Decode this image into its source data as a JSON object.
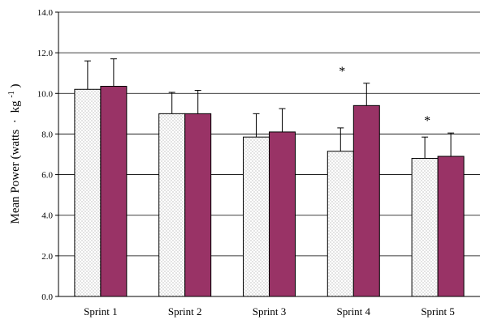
{
  "chart_data": {
    "type": "bar",
    "categories": [
      "Sprint 1",
      "Sprint 2",
      "Sprint 3",
      "Sprint 4",
      "Sprint 5"
    ],
    "series": [
      {
        "values": [
          10.2,
          9.0,
          7.85,
          7.15,
          6.8
        ],
        "errors": [
          1.4,
          1.05,
          1.15,
          1.15,
          1.05
        ],
        "fill": "dotted-white",
        "color": "#ffffff"
      },
      {
        "values": [
          10.35,
          9.0,
          8.1,
          9.4,
          6.9
        ],
        "errors": [
          1.35,
          1.15,
          1.15,
          1.1,
          1.15
        ],
        "fill": "solid",
        "color": "#993366"
      }
    ],
    "annotations": [
      {
        "category": "Sprint 4",
        "text": "*"
      },
      {
        "category": "Sprint 5",
        "text": "*"
      }
    ],
    "ylabel": {
      "main": "Mean Power (watts",
      "dot": "·",
      "unit": "kg",
      "sup": "-1",
      "close": ")"
    },
    "xlabel": "",
    "ylim": [
      0,
      14
    ],
    "yticks": [
      "0.0",
      "2.0",
      "4.0",
      "6.0",
      "8.0",
      "10.0",
      "12.0",
      "14.0"
    ],
    "grid": true
  }
}
